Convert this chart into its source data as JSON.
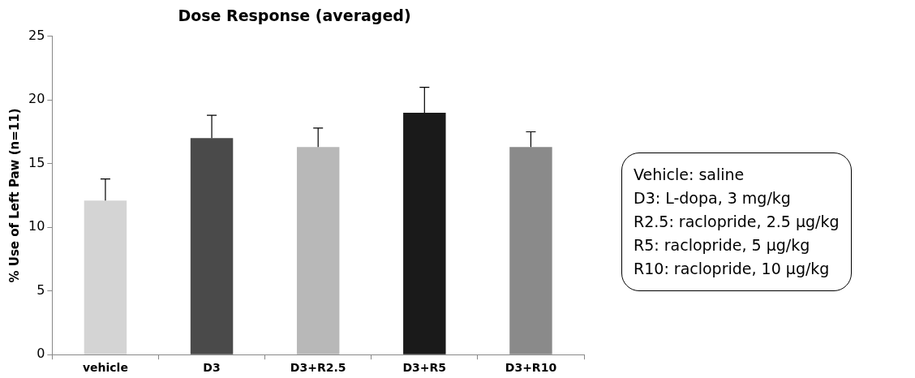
{
  "chart_data": {
    "type": "bar",
    "title": "Dose Response (averaged)",
    "ylabel": "% Use of Left Paw (n=11)",
    "categories": [
      "vehicle",
      "D3",
      "D3+R2.5",
      "D3+R5",
      "D3+R10"
    ],
    "values": [
      12.1,
      17.0,
      16.3,
      19.0,
      16.3
    ],
    "errors": [
      [
        12.1,
        13.8
      ],
      [
        17.0,
        18.8
      ],
      [
        16.3,
        17.8
      ],
      [
        19.0,
        21.0
      ],
      [
        16.3,
        17.5
      ]
    ],
    "colors": [
      "#d4d4d4",
      "#4a4a4a",
      "#b8b8b8",
      "#1a1a1a",
      "#8a8a8a"
    ],
    "ylim": [
      0,
      25
    ],
    "yticks": [
      0,
      5,
      10,
      15,
      20,
      25
    ],
    "grid": false,
    "legend": false,
    "annotations": [
      "Vehicle: saline",
      "D3: L-dopa, 3 mg/kg",
      "R2.5: raclopride, 2.5 μg/kg",
      "R5: raclopride, 5 μg/kg",
      "R10: raclopride, 10 μg/kg"
    ]
  }
}
